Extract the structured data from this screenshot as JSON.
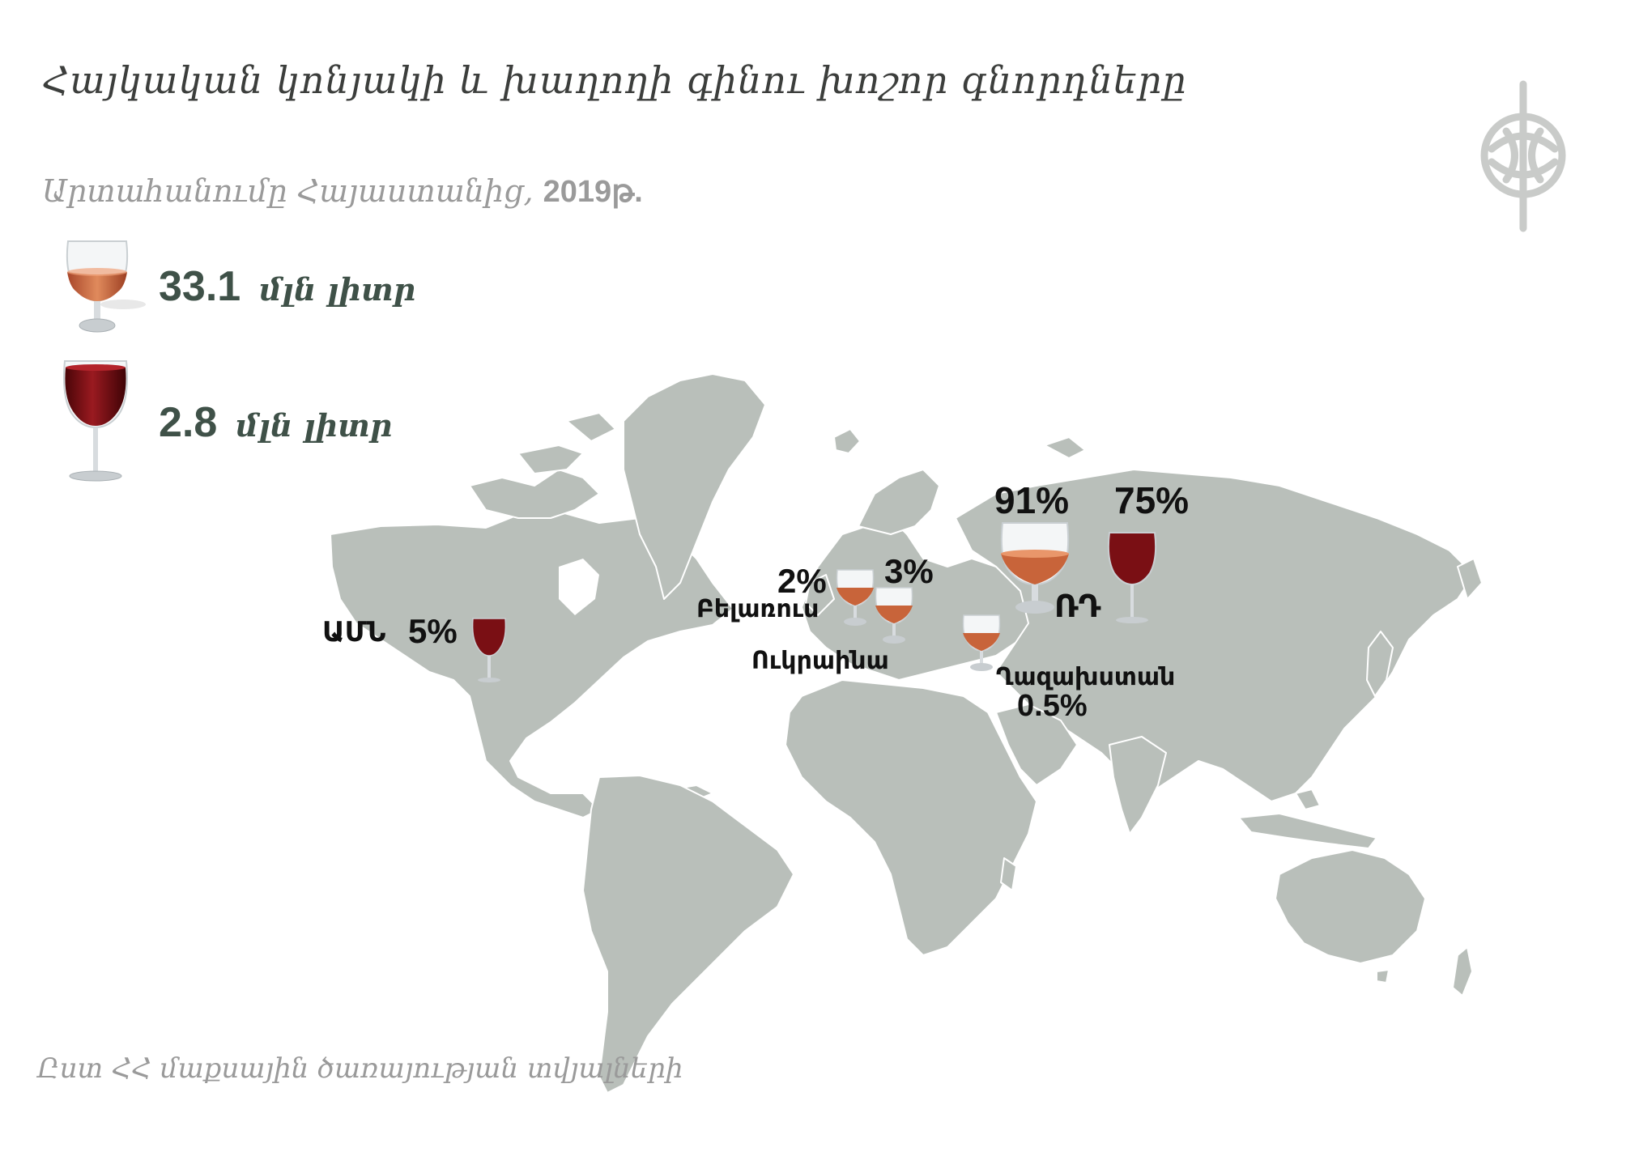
{
  "title": "Հայկական կոնյակի և խաղողի գինու խոշոր գնորդները",
  "subtitle": {
    "text": "Արտահանումը Հայաստանից,",
    "year": "2019թ."
  },
  "legend": {
    "brandy": {
      "value": "33.1",
      "unit": "մլն լիտր",
      "icon": "brandy-glass-icon"
    },
    "wine": {
      "value": "2.8",
      "unit": "մլն լիտր",
      "icon": "wine-glass-icon"
    }
  },
  "markers": [
    {
      "country": "ԱՄՆ",
      "percent": "5%",
      "drink": "wine"
    },
    {
      "country": "Բելառուս",
      "percent": "2%",
      "drink": "brandy"
    },
    {
      "country": "Ուկրաինա",
      "percent": "3%",
      "drink": "brandy"
    },
    {
      "country": "ՌԴ",
      "percent": "91%",
      "drink": "brandy"
    },
    {
      "country": "ՌԴ",
      "percent": "75%",
      "drink": "wine"
    },
    {
      "country": "Ղազախստան",
      "percent": "0.5%",
      "drink": "brandy"
    }
  ],
  "source": "Ըստ ՀՀ մաքսային ծառայության տվյալների",
  "colors": {
    "land": "#b9bfba",
    "stat_text": "#3f5148",
    "brandy": "#c8643a",
    "wine": "#7a0f14"
  }
}
